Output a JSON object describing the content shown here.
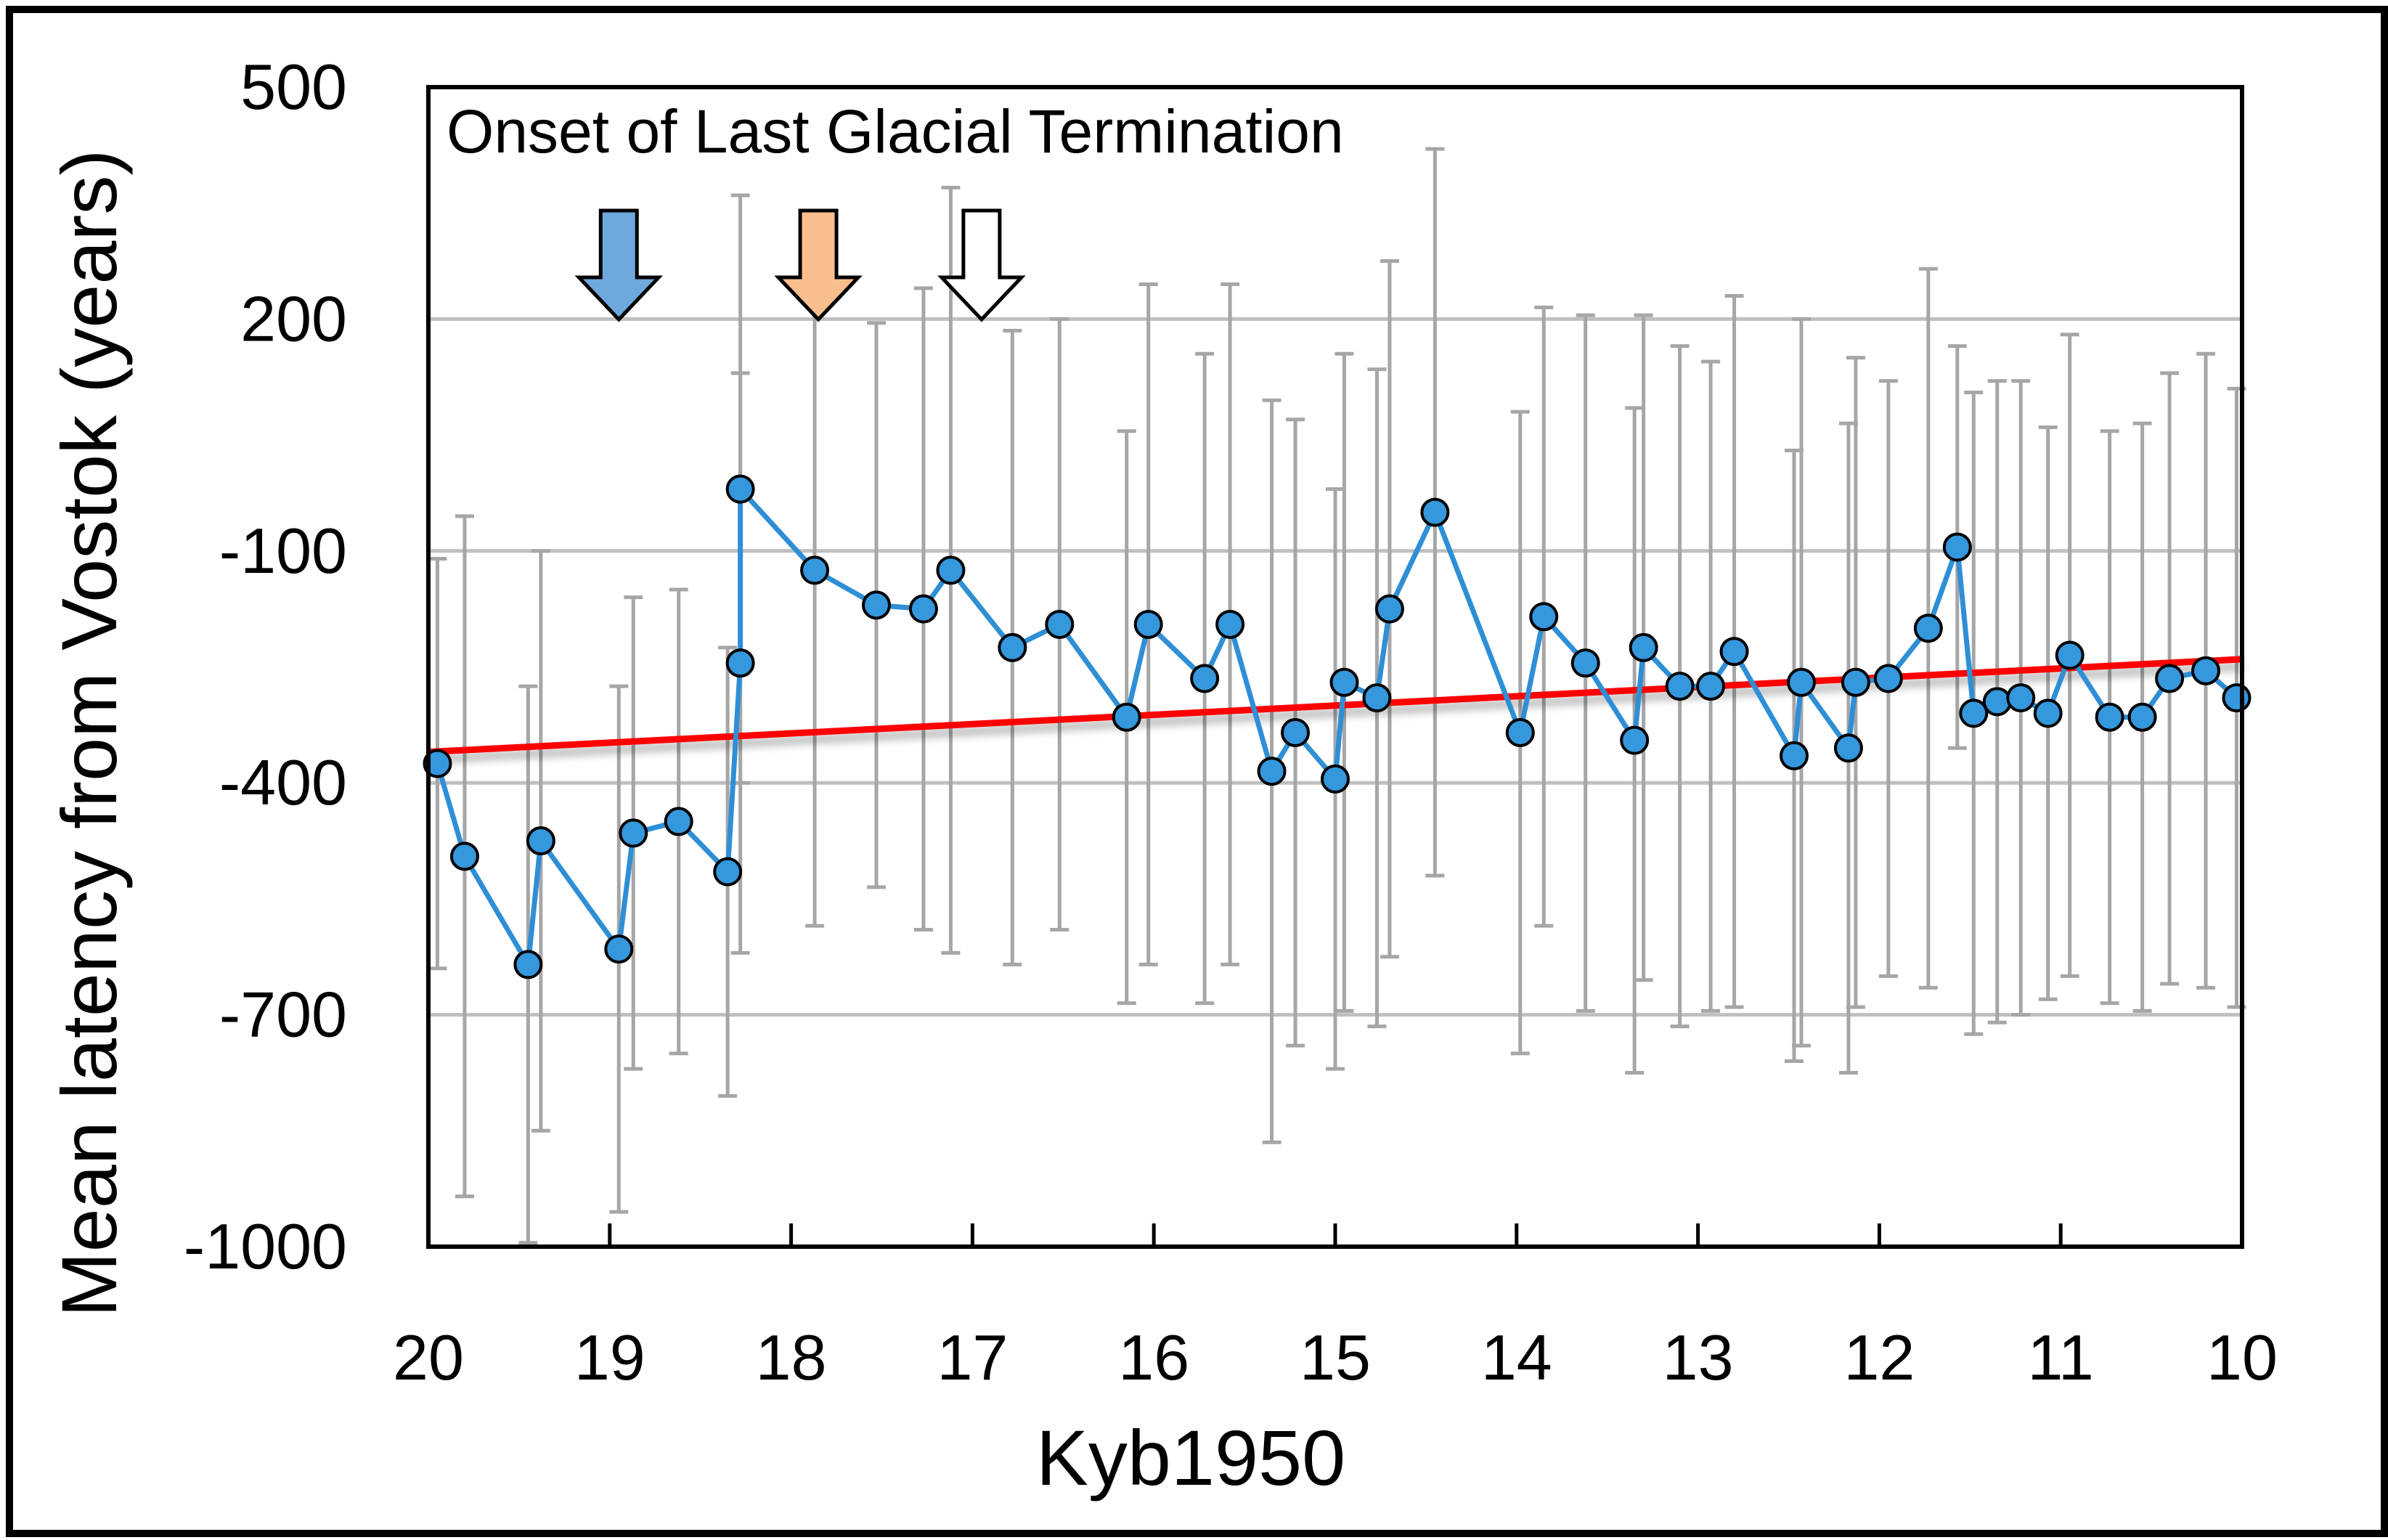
{
  "chart_data": {
    "type": "line",
    "title": "",
    "xlabel": "Kyb1950",
    "ylabel": "Mean latency from Vostok (years)",
    "xlim": [
      20,
      10
    ],
    "ylim": [
      -1000,
      500
    ],
    "x_ticks": [
      20,
      19,
      18,
      17,
      16,
      15,
      14,
      13,
      12,
      11,
      10
    ],
    "y_ticks": [
      500,
      200,
      -100,
      -400,
      -700,
      -1000
    ],
    "grid": "horizontal",
    "annotation": "Onset of Last Glacial Termination",
    "arrows": [
      {
        "x": 18.95,
        "label": "blue arrow",
        "color": "#6fa8dc"
      },
      {
        "x": 17.85,
        "label": "orange arrow",
        "color": "#f9be8e"
      },
      {
        "x": 16.95,
        "label": "white arrow",
        "color": "#ffffff"
      }
    ],
    "series": [
      {
        "name": "Mean latency",
        "color": "#2e8fd6",
        "marker_color": "#3597dc",
        "points": [
          {
            "x": 19.95,
            "y": -375,
            "err": 265
          },
          {
            "x": 19.8,
            "y": -495,
            "err": 440
          },
          {
            "x": 19.45,
            "y": -635,
            "err": 360
          },
          {
            "x": 19.38,
            "y": -475,
            "err": 375
          },
          {
            "x": 18.95,
            "y": -615,
            "err": 340
          },
          {
            "x": 18.87,
            "y": -465,
            "err": 305
          },
          {
            "x": 18.62,
            "y": -450,
            "err": 300
          },
          {
            "x": 18.35,
            "y": -515,
            "err": 290
          },
          {
            "x": 18.28,
            "y": -245,
            "err": 375
          },
          {
            "x": 18.28,
            "y": -20,
            "err": 380
          },
          {
            "x": 17.87,
            "y": -125,
            "err": 460
          },
          {
            "x": 17.53,
            "y": -170,
            "err": 365
          },
          {
            "x": 17.27,
            "y": -175,
            "err": 415
          },
          {
            "x": 17.12,
            "y": -125,
            "err": 495
          },
          {
            "x": 16.78,
            "y": -225,
            "err": 410
          },
          {
            "x": 16.52,
            "y": -195,
            "err": 395
          },
          {
            "x": 16.15,
            "y": -315,
            "err": 370
          },
          {
            "x": 16.03,
            "y": -195,
            "err": 440
          },
          {
            "x": 15.72,
            "y": -265,
            "err": 420
          },
          {
            "x": 15.58,
            "y": -195,
            "err": 440
          },
          {
            "x": 15.35,
            "y": -385,
            "err": 480
          },
          {
            "x": 15.22,
            "y": -335,
            "err": 405
          },
          {
            "x": 15.0,
            "y": -395,
            "err": 375
          },
          {
            "x": 14.95,
            "y": -270,
            "err": 425
          },
          {
            "x": 14.77,
            "y": -290,
            "err": 425
          },
          {
            "x": 14.7,
            "y": -175,
            "err": 450
          },
          {
            "x": 14.45,
            "y": -50,
            "err": 470
          },
          {
            "x": 13.98,
            "y": -335,
            "err": 415
          },
          {
            "x": 13.85,
            "y": -185,
            "err": 400
          },
          {
            "x": 13.62,
            "y": -245,
            "err": 450
          },
          {
            "x": 13.35,
            "y": -345,
            "err": 430
          },
          {
            "x": 13.3,
            "y": -225,
            "err": 430
          },
          {
            "x": 13.1,
            "y": -275,
            "err": 440
          },
          {
            "x": 12.93,
            "y": -275,
            "err": 420
          },
          {
            "x": 12.8,
            "y": -230,
            "err": 460
          },
          {
            "x": 12.47,
            "y": -365,
            "err": 395
          },
          {
            "x": 12.43,
            "y": -270,
            "err": 470
          },
          {
            "x": 12.17,
            "y": -355,
            "err": 420
          },
          {
            "x": 12.13,
            "y": -270,
            "err": 420
          },
          {
            "x": 11.95,
            "y": -265,
            "err": 385
          },
          {
            "x": 11.73,
            "y": -200,
            "err": 465
          },
          {
            "x": 11.57,
            "y": -95,
            "err": 260
          },
          {
            "x": 11.48,
            "y": -310,
            "err": 415
          },
          {
            "x": 11.35,
            "y": -295,
            "err": 415
          },
          {
            "x": 11.22,
            "y": -290,
            "err": 410
          },
          {
            "x": 11.07,
            "y": -310,
            "err": 370
          },
          {
            "x": 10.95,
            "y": -235,
            "err": 415
          },
          {
            "x": 10.73,
            "y": -315,
            "err": 370
          },
          {
            "x": 10.55,
            "y": -315,
            "err": 380
          },
          {
            "x": 10.4,
            "y": -265,
            "err": 395
          },
          {
            "x": 10.2,
            "y": -255,
            "err": 410
          },
          {
            "x": 10.03,
            "y": -290,
            "err": 400
          }
        ]
      },
      {
        "name": "Linear trend",
        "color": "#ff0000",
        "points": [
          {
            "x": 20,
            "y": -360
          },
          {
            "x": 10,
            "y": -240
          }
        ]
      }
    ]
  }
}
